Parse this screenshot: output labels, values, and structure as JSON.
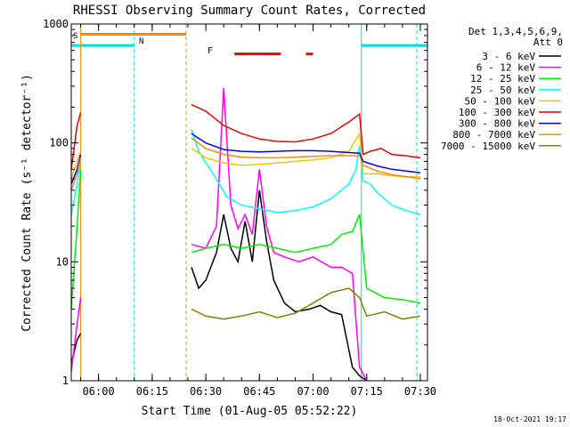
{
  "chart_data": {
    "type": "line",
    "title": "RHESSI Observing Summary Count Rates, Corrected",
    "xlabel": "Start Time (01-Aug-05 05:52:22)",
    "ylabel": "Corrected Count Rate (s⁻¹ detector⁻¹)",
    "yscale": "log",
    "ylim": [
      1,
      1000
    ],
    "xlim": [
      "05:52:22",
      "07:32:00"
    ],
    "x_ticks": [
      "06:00",
      "06:15",
      "06:30",
      "06:45",
      "07:00",
      "07:15",
      "07:30"
    ],
    "y_ticks": [
      "1",
      "10",
      "100",
      "1000"
    ],
    "legend_header": [
      "Det 1,3,4,5,6,9,",
      "Att 0"
    ],
    "legend_position": "right",
    "footer": "18-Oct-2021 19:17",
    "flag_labels": {
      "s": "S",
      "n": "N",
      "f": "F"
    },
    "series": [
      {
        "name": "3 - 6 keV",
        "color": "#000000",
        "x": [
          "05:52:22",
          "05:54",
          "05:55",
          "06:24",
          "06:26",
          "06:28",
          "06:30",
          "06:33",
          "06:35",
          "06:37",
          "06:39",
          "06:41",
          "06:43",
          "06:45",
          "06:47",
          "06:49",
          "06:52",
          "06:55",
          "06:59",
          "07:02",
          "07:05",
          "07:08",
          "07:11",
          "07:13",
          "07:15"
        ],
        "y": [
          1.4,
          2.2,
          2.5,
          null,
          9,
          6,
          7,
          12,
          25,
          13,
          10,
          22,
          10,
          40,
          15,
          7,
          4.5,
          3.8,
          4,
          4.3,
          3.8,
          3.6,
          1.3,
          1.1,
          1.0
        ]
      },
      {
        "name": "6 - 12 keV",
        "color": "#ff00ff",
        "x": [
          "05:52:22",
          "05:54",
          "05:55",
          "06:24",
          "06:26",
          "06:30",
          "06:33",
          "06:35",
          "06:37",
          "06:39",
          "06:41",
          "06:43",
          "06:45",
          "06:47",
          "06:49",
          "06:52",
          "06:56",
          "07:00",
          "07:05",
          "07:08",
          "07:11",
          "07:13",
          "07:15"
        ],
        "y": [
          1.2,
          3,
          5,
          null,
          14,
          13,
          20,
          290,
          30,
          19,
          25,
          17,
          60,
          20,
          12,
          11,
          10,
          11,
          9,
          9,
          8,
          1.3,
          1.0
        ]
      },
      {
        "name": "12 - 25 keV",
        "color": "#00ee00",
        "x": [
          "05:52:22",
          "05:54",
          "05:55",
          "06:24",
          "06:26",
          "06:30",
          "06:35",
          "06:40",
          "06:45",
          "06:50",
          "06:55",
          "07:00",
          "07:05",
          "07:08",
          "07:11",
          "07:13",
          "07:15",
          "07:20",
          "07:25",
          "07:30"
        ],
        "y": [
          4,
          20,
          60,
          null,
          12,
          13,
          14,
          13,
          14,
          13,
          12,
          13,
          14,
          17,
          18,
          25,
          6,
          5,
          4.8,
          4.5
        ]
      },
      {
        "name": "25 - 50 keV",
        "color": "#00ffff",
        "x": [
          "05:52:22",
          "05:54",
          "05:55",
          "06:24",
          "06:26",
          "06:28",
          "06:32",
          "06:36",
          "06:40",
          "06:45",
          "06:50",
          "06:55",
          "07:00",
          "07:05",
          "07:10",
          "07:12",
          "07:13",
          "07:14",
          "07:16",
          "07:18",
          "07:22",
          "07:26",
          "07:30"
        ],
        "y": [
          25,
          45,
          75,
          null,
          130,
          85,
          55,
          35,
          30,
          28,
          26,
          27,
          29,
          34,
          45,
          60,
          95,
          48,
          45,
          38,
          30,
          27,
          25
        ]
      },
      {
        "name": "50 - 100 keV",
        "color": "#e8c800",
        "x": [
          "05:52:22",
          "05:54",
          "05:55",
          "06:24",
          "06:26",
          "06:30",
          "06:35",
          "06:40",
          "06:45",
          "06:50",
          "06:55",
          "07:00",
          "07:05",
          "07:10",
          "07:13",
          "07:14",
          "07:18",
          "07:22",
          "07:26",
          "07:30"
        ],
        "y": [
          50,
          70,
          85,
          null,
          90,
          75,
          68,
          65,
          66,
          68,
          70,
          72,
          75,
          85,
          120,
          55,
          55,
          53,
          52,
          52
        ]
      },
      {
        "name": "100 - 300 keV",
        "color": "#ee0000",
        "x": [
          "05:52:22",
          "05:54",
          "05:55",
          "06:24",
          "06:26",
          "06:30",
          "06:35",
          "06:40",
          "06:45",
          "06:50",
          "06:55",
          "07:00",
          "07:05",
          "07:10",
          "07:13",
          "07:14",
          "07:16",
          "07:19",
          "07:22",
          "07:26",
          "07:30"
        ],
        "y": [
          60,
          140,
          180,
          null,
          210,
          185,
          140,
          120,
          108,
          103,
          102,
          108,
          120,
          150,
          175,
          80,
          85,
          90,
          80,
          78,
          75
        ]
      },
      {
        "name": "300 - 800 keV",
        "color": "#0000ff",
        "x": [
          "05:52:22",
          "05:54",
          "05:55",
          "06:24",
          "06:26",
          "06:30",
          "06:35",
          "06:40",
          "06:45",
          "06:50",
          "06:55",
          "07:00",
          "07:05",
          "07:10",
          "07:13",
          "07:14",
          "07:18",
          "07:22",
          "07:26",
          "07:30"
        ],
        "y": [
          45,
          60,
          80,
          null,
          120,
          100,
          88,
          85,
          84,
          85,
          86,
          86,
          85,
          83,
          82,
          70,
          64,
          60,
          58,
          56
        ]
      },
      {
        "name": "800 - 7000 keV",
        "color": "#ff8800",
        "x": [
          "05:52:22",
          "05:54",
          "05:55",
          "06:24",
          "06:26",
          "06:30",
          "06:35",
          "06:40",
          "06:45",
          "06:50",
          "06:55",
          "07:00",
          "07:05",
          "07:10",
          "07:13",
          "07:14",
          "07:18",
          "07:22",
          "07:26",
          "07:30"
        ],
        "y": [
          40,
          55,
          75,
          null,
          110,
          90,
          80,
          76,
          75,
          75,
          76,
          77,
          78,
          78,
          78,
          65,
          58,
          54,
          52,
          50
        ]
      },
      {
        "name": "7000 - 15000 keV",
        "color": "#808000",
        "x": [
          "05:52:22",
          "05:55",
          "06:24",
          "06:26",
          "06:30",
          "06:35",
          "06:40",
          "06:45",
          "06:50",
          "06:55",
          "07:00",
          "07:05",
          "07:10",
          "07:13",
          "07:15",
          "07:20",
          "07:25",
          "07:30"
        ],
        "y": [
          null,
          null,
          null,
          4,
          3.5,
          3.3,
          3.5,
          3.8,
          3.4,
          3.7,
          4.5,
          5.5,
          6,
          5,
          3.5,
          3.8,
          3.3,
          3.5
        ]
      }
    ],
    "grid": false
  }
}
